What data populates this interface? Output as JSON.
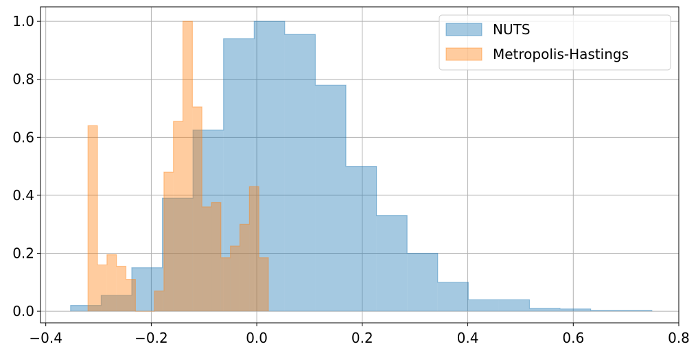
{
  "chart_data": {
    "type": "histogram",
    "grid": true,
    "legend_position": "top-right",
    "xlim": [
      -0.41,
      0.8
    ],
    "ylim": [
      -0.04,
      1.05
    ],
    "xticks": [
      -0.4,
      -0.2,
      0.0,
      0.2,
      0.4,
      0.6,
      0.8
    ],
    "xtick_labels": [
      "−0.4",
      "−0.2",
      "0.0",
      "0.2",
      "0.4",
      "0.6",
      "0.8"
    ],
    "yticks": [
      0.0,
      0.2,
      0.4,
      0.6,
      0.8,
      1.0
    ],
    "ytick_labels": [
      "0.0",
      "0.2",
      "0.4",
      "0.6",
      "0.8",
      "1.0"
    ],
    "series": [
      {
        "name": "NUTS",
        "color": "#1f77b4",
        "bin_edges": [
          -0.353,
          -0.295,
          -0.237,
          -0.179,
          -0.121,
          -0.063,
          -0.005,
          0.053,
          0.111,
          0.169,
          0.227,
          0.285,
          0.343,
          0.401,
          0.459,
          0.517,
          0.575,
          0.633,
          0.691,
          0.749
        ],
        "values": [
          0.02,
          0.055,
          0.15,
          0.39,
          0.625,
          0.94,
          1.0,
          0.955,
          0.78,
          0.5,
          0.33,
          0.2,
          0.1,
          0.04,
          0.04,
          0.01,
          0.008,
          0.003,
          0.003
        ]
      },
      {
        "name": "Metropolis-Hastings",
        "color": "#ff7f0e",
        "bin_edges": [
          -0.32,
          -0.302,
          -0.284,
          -0.266,
          -0.248,
          -0.23,
          -0.212,
          -0.194,
          -0.176,
          -0.158,
          -0.14,
          -0.122,
          -0.104,
          -0.086,
          -0.068,
          -0.05,
          -0.032,
          -0.014,
          0.004,
          0.022
        ],
        "values": [
          0.64,
          0.16,
          0.195,
          0.155,
          0.11,
          0.0,
          0.0,
          0.07,
          0.48,
          0.655,
          1.0,
          0.705,
          0.36,
          0.375,
          0.185,
          0.225,
          0.3,
          0.43,
          0.185
        ]
      }
    ]
  }
}
